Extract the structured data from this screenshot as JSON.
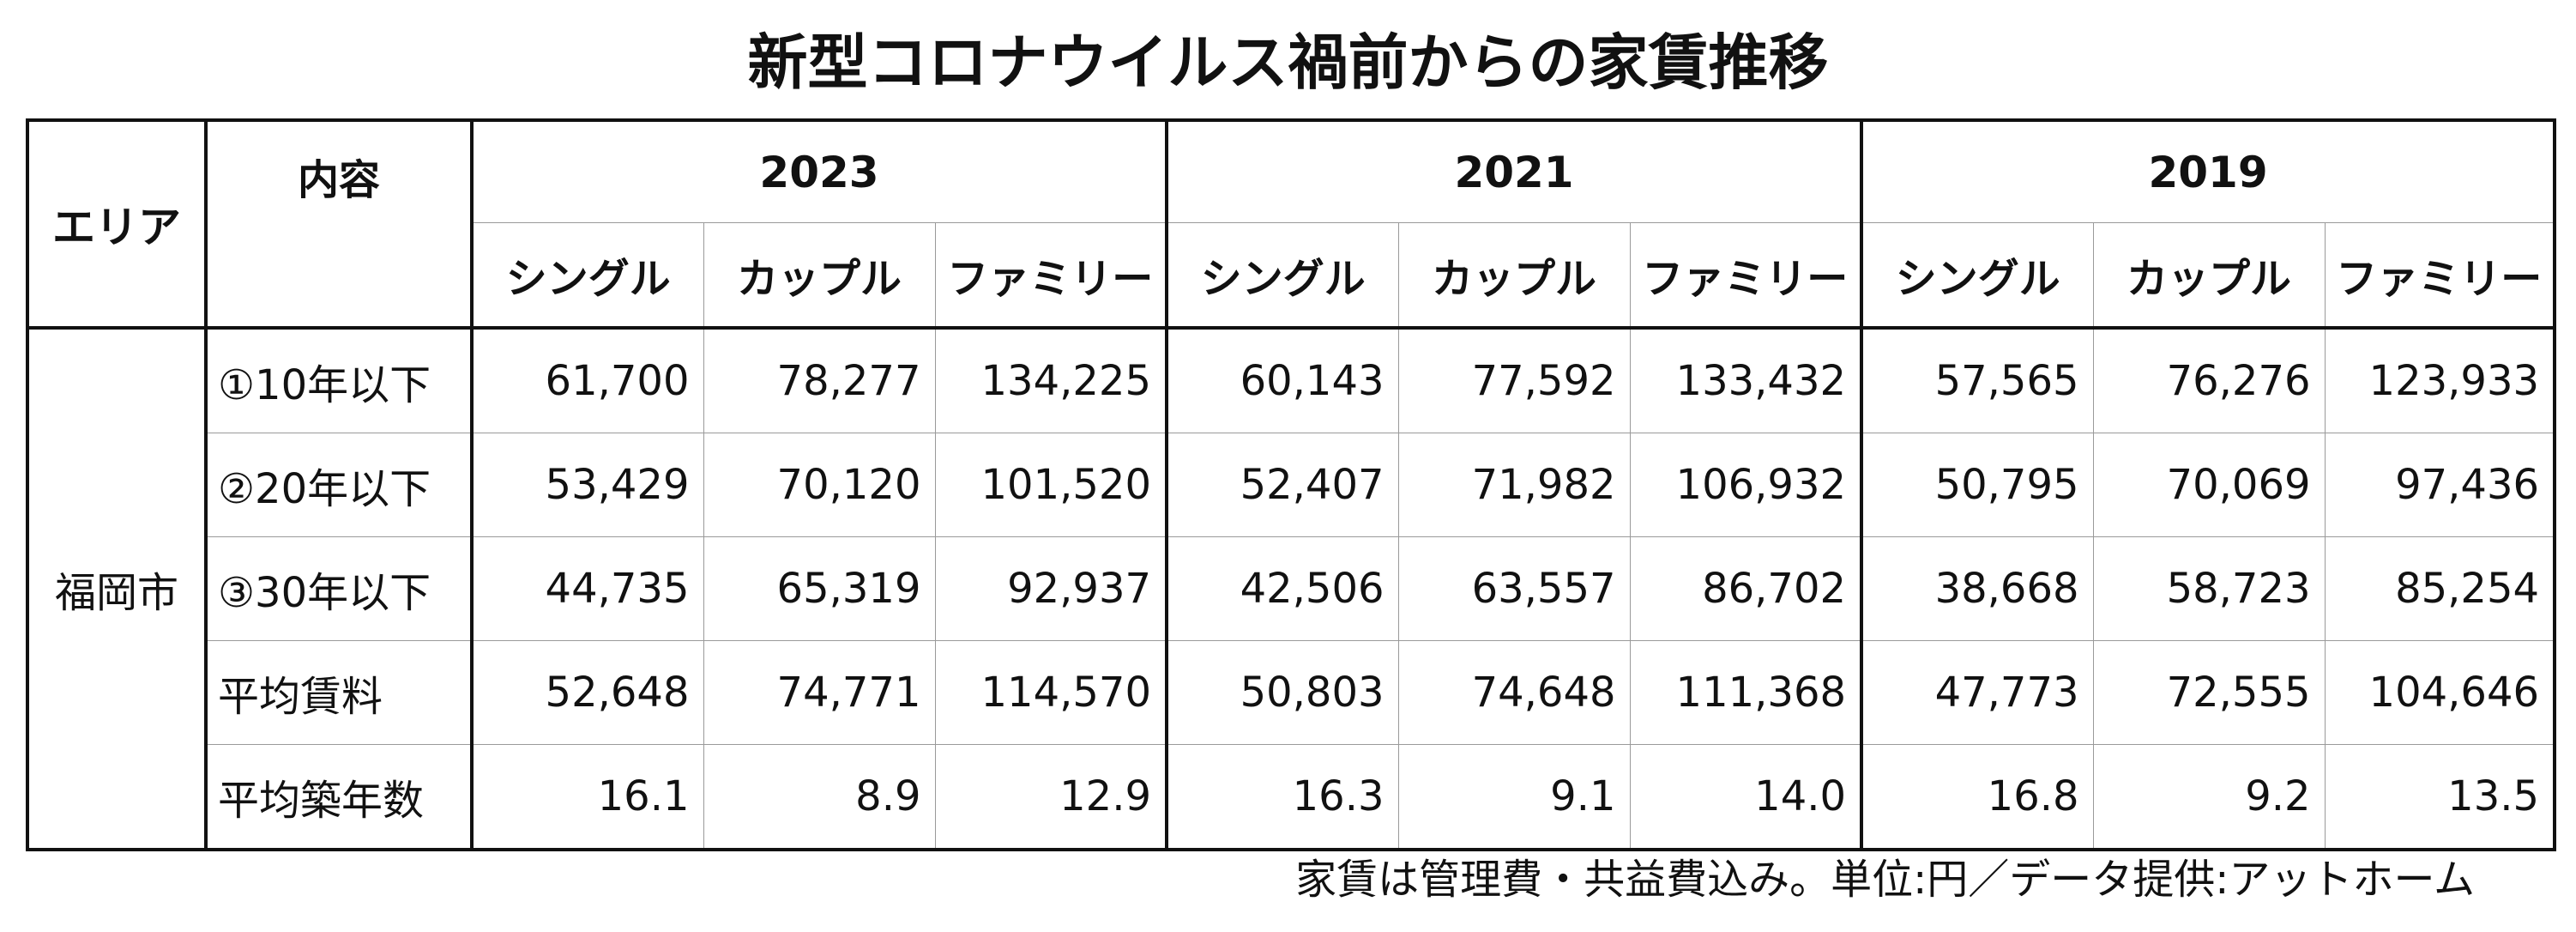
{
  "title": "新型コロナウイルス禍前からの家賃推移",
  "header": {
    "area_label": "エリア",
    "content_label": "内容",
    "years": [
      "2023",
      "2021",
      "2019"
    ],
    "types": [
      "シングル",
      "カップル",
      "ファミリー"
    ]
  },
  "region": "福岡市",
  "rows": [
    {
      "label": "①10年以下",
      "values": [
        "61,700",
        "78,277",
        "134,225",
        "60,143",
        "77,592",
        "133,432",
        "57,565",
        "76,276",
        "123,933"
      ]
    },
    {
      "label": "②20年以下",
      "values": [
        "53,429",
        "70,120",
        "101,520",
        "52,407",
        "71,982",
        "106,932",
        "50,795",
        "70,069",
        "97,436"
      ]
    },
    {
      "label": "③30年以下",
      "values": [
        "44,735",
        "65,319",
        "92,937",
        "42,506",
        "63,557",
        "86,702",
        "38,668",
        "58,723",
        "85,254"
      ]
    },
    {
      "label": "平均賃料",
      "values": [
        "52,648",
        "74,771",
        "114,570",
        "50,803",
        "74,648",
        "111,368",
        "47,773",
        "72,555",
        "104,646"
      ]
    },
    {
      "label": "平均築年数",
      "values": [
        "16.1",
        "8.9",
        "12.9",
        "16.3",
        "9.1",
        "14.0",
        "16.8",
        "9.2",
        "13.5"
      ]
    }
  ],
  "note": "家賃は管理費・共益費込み。単位:円／データ提供:アットホーム"
}
